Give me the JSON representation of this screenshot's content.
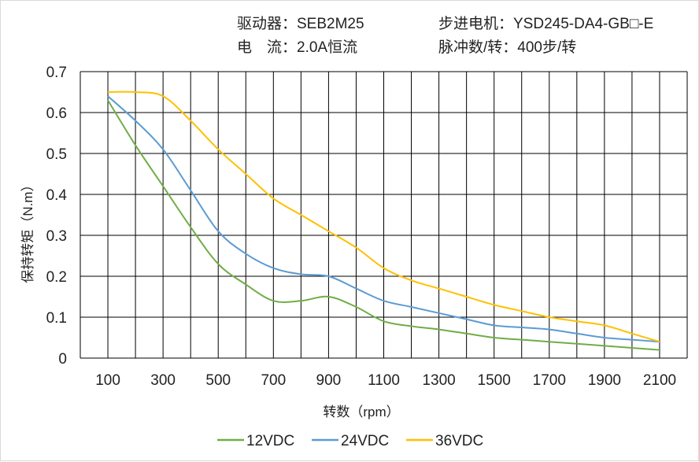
{
  "header": {
    "driver": "驱动器：SEB2M25",
    "current": "电　流：2.0A恒流",
    "motor": "步进电机：YSD245-DA4-GB□-E",
    "pulses": "脉冲数/转：400步/转"
  },
  "chart_data": {
    "type": "line",
    "title": "",
    "xlabel": "转数（rpm）",
    "ylabel": "保持转矩（N.m）",
    "xlim": [
      0,
      2200
    ],
    "ylim": [
      0,
      0.7
    ],
    "x_ticks": [
      100,
      300,
      500,
      700,
      900,
      1100,
      1300,
      1500,
      1700,
      1900,
      2100
    ],
    "y_ticks": [
      "0",
      "0.1",
      "0.2",
      "0.3",
      "0.4",
      "0.5",
      "0.6",
      "0.7"
    ],
    "grid": true,
    "legend_position": "bottom",
    "x": [
      100,
      200,
      300,
      400,
      500,
      600,
      700,
      800,
      900,
      1000,
      1100,
      1200,
      1300,
      1400,
      1500,
      1600,
      1700,
      1800,
      1900,
      2000,
      2100
    ],
    "series": [
      {
        "name": "12VDC",
        "color": "#70ad47",
        "values": [
          0.63,
          0.52,
          0.42,
          0.32,
          0.23,
          0.18,
          0.14,
          0.14,
          0.15,
          0.125,
          0.09,
          0.078,
          0.07,
          0.06,
          0.05,
          0.045,
          0.04,
          0.035,
          0.03,
          0.025,
          0.02
        ]
      },
      {
        "name": "24VDC",
        "color": "#5b9bd5",
        "values": [
          0.64,
          0.58,
          0.51,
          0.41,
          0.31,
          0.255,
          0.22,
          0.205,
          0.2,
          0.17,
          0.14,
          0.125,
          0.11,
          0.095,
          0.08,
          0.075,
          0.07,
          0.06,
          0.05,
          0.045,
          0.04
        ]
      },
      {
        "name": "36VDC",
        "color": "#ffc000",
        "values": [
          0.65,
          0.65,
          0.64,
          0.58,
          0.51,
          0.45,
          0.39,
          0.35,
          0.31,
          0.27,
          0.22,
          0.19,
          0.17,
          0.15,
          0.13,
          0.115,
          0.1,
          0.09,
          0.08,
          0.06,
          0.04
        ]
      }
    ]
  }
}
